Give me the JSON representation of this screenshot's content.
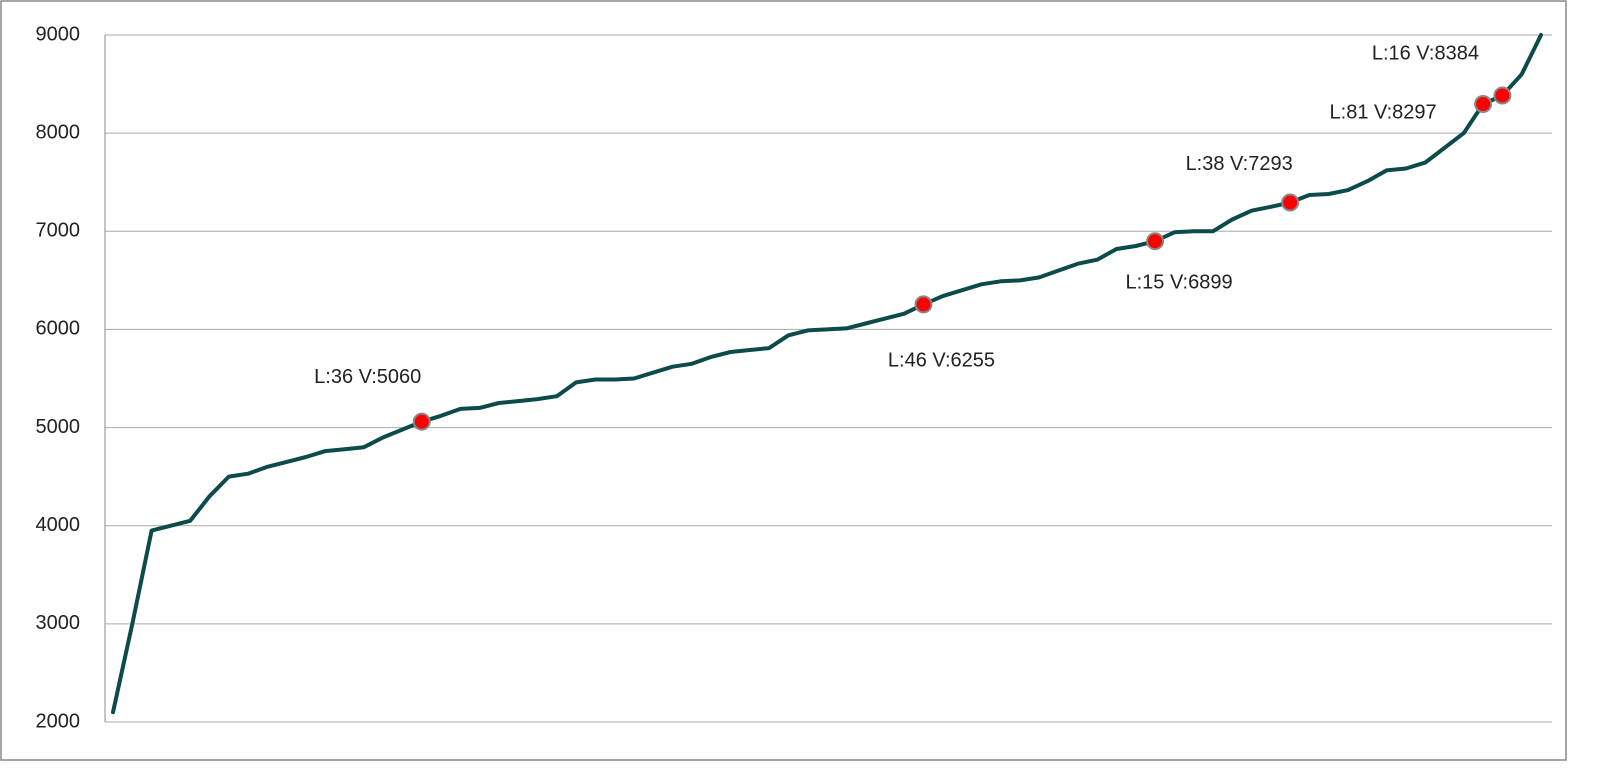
{
  "chart_data": {
    "type": "line",
    "series": [
      {
        "color": "#0d4a4a",
        "values": [
          2100,
          3000,
          3950,
          4000,
          4050,
          4300,
          4500,
          4530,
          4600,
          4650,
          4700,
          4760,
          4780,
          4800,
          4900,
          4980,
          5060,
          5120,
          5190,
          5200,
          5250,
          5270,
          5290,
          5320,
          5460,
          5490,
          5490,
          5500,
          5560,
          5620,
          5650,
          5720,
          5770,
          5790,
          5810,
          5940,
          5990,
          6000,
          6010,
          6060,
          6110,
          6160,
          6255,
          6340,
          6400,
          6460,
          6490,
          6500,
          6530,
          6600,
          6670,
          6710,
          6820,
          6850,
          6899,
          6990,
          7000,
          7000,
          7120,
          7210,
          7250,
          7293,
          7370,
          7380,
          7420,
          7510,
          7620,
          7640,
          7700,
          7850,
          8000,
          8297,
          8384,
          8600,
          9000
        ]
      }
    ],
    "annotations": [
      {
        "index": 16,
        "text": "L:36 V:5060"
      },
      {
        "index": 42,
        "text": "L:46 V:6255"
      },
      {
        "index": 54,
        "text": "L:15 V:6899"
      },
      {
        "index": 61,
        "text": "L:38 V:7293"
      },
      {
        "index": 71,
        "text": "L:81 V:8297"
      },
      {
        "index": 72,
        "text": "L:16 V:8384"
      }
    ],
    "marker_color": "#ff0000",
    "ylim": [
      2000,
      9000
    ],
    "yticks": [
      2000,
      3000,
      4000,
      5000,
      6000,
      7000,
      8000,
      9000
    ],
    "grid": true
  }
}
